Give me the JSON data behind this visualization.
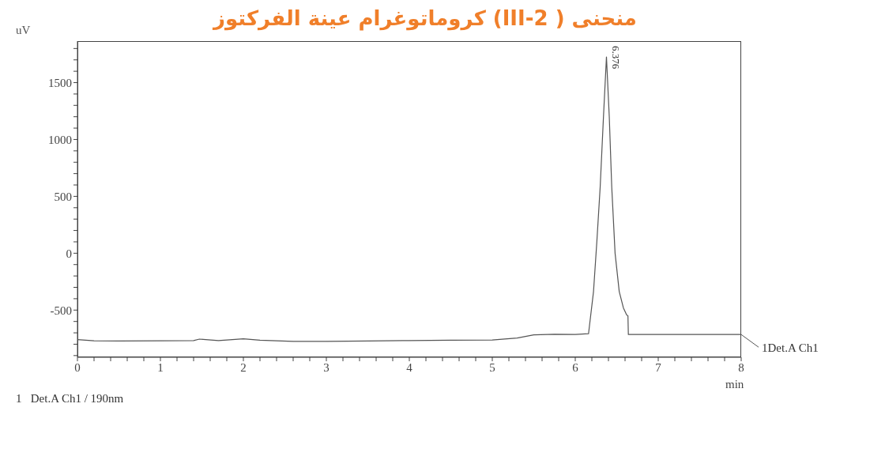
{
  "chart_data": {
    "type": "line",
    "title": "منحنى ( III-2)  كروماتوغرام عينة الفركتوز",
    "xlabel": "min",
    "ylabel": "uV",
    "x": [
      0,
      0.2,
      0.5,
      1.0,
      1.4,
      1.47,
      1.7,
      2.0,
      2.2,
      2.6,
      3.0,
      3.5,
      4.0,
      4.5,
      5.0,
      5.3,
      5.5,
      5.75,
      6.0,
      6.16,
      6.22,
      6.26,
      6.3,
      6.34,
      6.376,
      6.41,
      6.44,
      6.48,
      6.53,
      6.58,
      6.62,
      6.635,
      6.64,
      7.0,
      7.5,
      8.0
    ],
    "series": [
      {
        "name": "1Det.A Ch1",
        "color": "#555555",
        "values": [
          -760,
          -770,
          -772,
          -770,
          -768,
          -755,
          -768,
          -752,
          -765,
          -775,
          -775,
          -772,
          -768,
          -765,
          -763,
          -745,
          -718,
          -712,
          -715,
          -708,
          -337,
          100,
          578,
          1200,
          1726,
          1200,
          578,
          0,
          -337,
          -480,
          -543,
          -550,
          -715,
          -715,
          -715,
          -715
        ]
      }
    ],
    "xlim": [
      0,
      8
    ],
    "ylim": [
      -915,
      1865
    ],
    "xticks": [
      0,
      {
        "value": 0.2,
        "label": null
      },
      {
        "value": 0.4,
        "label": null
      },
      {
        "value": 0.6,
        "label": null
      },
      {
        "value": 0.8,
        "label": null
      },
      1,
      {
        "value": 1.2,
        "label": null
      },
      {
        "value": 1.4,
        "label": null
      },
      {
        "value": 1.6,
        "label": null
      },
      {
        "value": 1.8,
        "label": null
      },
      2,
      {
        "value": 2.2,
        "label": null
      },
      {
        "value": 2.4,
        "label": null
      },
      {
        "value": 2.6,
        "label": null
      },
      {
        "value": 2.8,
        "label": null
      },
      3,
      {
        "value": 3.2,
        "label": null
      },
      {
        "value": 3.4,
        "label": null
      },
      {
        "value": 3.6,
        "label": null
      },
      {
        "value": 3.8,
        "label": null
      },
      4,
      {
        "value": 4.2,
        "label": null
      },
      {
        "value": 4.4,
        "label": null
      },
      {
        "value": 4.6,
        "label": null
      },
      {
        "value": 4.8,
        "label": null
      },
      5,
      {
        "value": 5.2,
        "label": null
      },
      {
        "value": 5.4,
        "label": null
      },
      {
        "value": 5.6,
        "label": null
      },
      {
        "value": 5.8,
        "label": null
      },
      6,
      {
        "value": 6.2,
        "label": null
      },
      {
        "value": 6.4,
        "label": null
      },
      {
        "value": 6.6,
        "label": null
      },
      {
        "value": 6.8,
        "label": null
      },
      7,
      {
        "value": 7.2,
        "label": null
      },
      {
        "value": 7.4,
        "label": null
      },
      {
        "value": 7.6,
        "label": null
      },
      {
        "value": 7.8,
        "label": null
      },
      8
    ],
    "yticks": [
      {
        "value": -900,
        "label": null
      },
      {
        "value": -800,
        "label": null
      },
      {
        "value": -700,
        "label": null
      },
      {
        "value": -600,
        "label": null
      },
      -500,
      {
        "value": -400,
        "label": null
      },
      {
        "value": -300,
        "label": null
      },
      {
        "value": -200,
        "label": null
      },
      {
        "value": -100,
        "label": null
      },
      0,
      {
        "value": 100,
        "label": null
      },
      {
        "value": 200,
        "label": null
      },
      {
        "value": 300,
        "label": null
      },
      {
        "value": 400,
        "label": null
      },
      500,
      {
        "value": 600,
        "label": null
      },
      {
        "value": 700,
        "label": null
      },
      {
        "value": 800,
        "label": null
      },
      {
        "value": 900,
        "label": null
      },
      1000,
      {
        "value": 1100,
        "label": null
      },
      {
        "value": 1200,
        "label": null
      },
      {
        "value": 1300,
        "label": null
      },
      {
        "value": 1400,
        "label": null
      },
      1500,
      {
        "value": 1600,
        "label": null
      },
      {
        "value": 1700,
        "label": null
      },
      {
        "value": 1800,
        "label": null
      }
    ],
    "annotations": [
      {
        "text": "6.376",
        "x": 6.376,
        "y": 1726
      },
      "1   Det.A Ch1 / 190nm"
    ],
    "grid": false,
    "legend": "right",
    "marker": "none",
    "line_style": "solid"
  }
}
